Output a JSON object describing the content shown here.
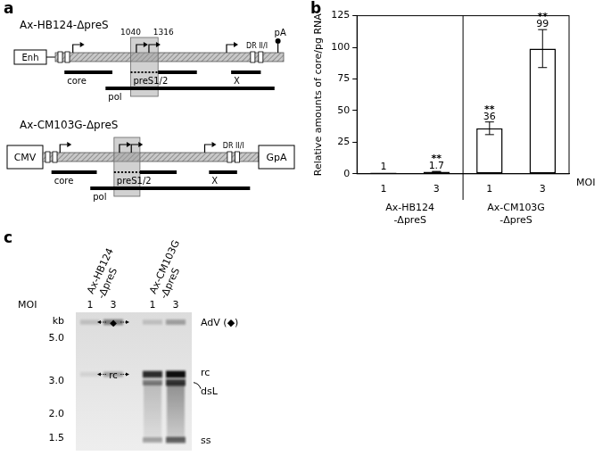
{
  "panel_labels": [
    "a",
    "b",
    "c"
  ],
  "diagram": {
    "constructs": [
      {
        "name": "Ax-HB124-ΔpreS",
        "enhancer": "Enh",
        "deletion": [
          1040,
          1316
        ],
        "dr": "DR II/I",
        "polyA": "pA",
        "orfs": [
          "core",
          "preS1/2",
          "pol",
          "X"
        ]
      },
      {
        "name": "Ax-CM103G-ΔpreS",
        "promoter": "CMV",
        "dr": "DR II/I",
        "polyA": "GpA",
        "orfs": [
          "core",
          "preS1/2",
          "pol",
          "X"
        ]
      }
    ]
  },
  "chart_data": {
    "type": "bar",
    "categories": [
      "1",
      "3",
      "1",
      "3"
    ],
    "groups": [
      [
        "Ax-HB124",
        "-ΔpreS"
      ],
      [
        "Ax-HB124",
        "-ΔpreS"
      ],
      [
        "Ax-CM103G",
        "-ΔpreS"
      ],
      [
        "Ax-CM103G",
        "-ΔpreS"
      ]
    ],
    "values": [
      1,
      1.7,
      36,
      99
    ],
    "errors": [
      0,
      0.2,
      5,
      15
    ],
    "significance": [
      null,
      "**",
      "**",
      "**"
    ],
    "color": "#ffffff",
    "data_labels": true,
    "y_label": "Relative amounts of core/pg RNA",
    "x_label": "MOI",
    "ylim": [
      0,
      125
    ],
    "yticks": [
      0,
      25,
      50,
      75,
      100,
      125
    ],
    "grid": false
  },
  "blot": {
    "groups": [
      [
        "Ax-HB124",
        "-ΔpreS"
      ],
      [
        "Ax-HB124",
        "-ΔpreS"
      ],
      [
        "Ax-CM103G",
        "-ΔpreS"
      ],
      [
        "Ax-CM103G",
        "-ΔpreS"
      ]
    ],
    "moi_label": "MOI",
    "moi": [
      "1",
      "3",
      "1",
      "3"
    ],
    "kb_label": "kb",
    "kb_ticks": [
      {
        "value": 5,
        "label": "5.0"
      },
      {
        "value": 3,
        "label": "3.0"
      },
      {
        "value": 2,
        "label": "2.0"
      },
      {
        "value": 1.5,
        "label": "1.5"
      }
    ],
    "bands": [
      {
        "name": "AdV",
        "label": "AdV (◆)",
        "size_kb": 6.0,
        "intensity": [
          0.15,
          0.45,
          0.15,
          0.3
        ]
      },
      {
        "name": "rc",
        "label": "rc",
        "size_kb": 3.2,
        "intensity": [
          0.08,
          0.3,
          0.85,
          1
        ]
      },
      {
        "name": "dsL",
        "label": "dsL",
        "size_kb": 2.9,
        "intensity": [
          0,
          0,
          0.45,
          0.8
        ]
      },
      {
        "name": "ss",
        "label": "ss",
        "size_kb": 1.45,
        "intensity": [
          0,
          0,
          0.3,
          0.6
        ]
      }
    ],
    "smear": {
      "from_kb": 2.9,
      "to_kb": 1.45,
      "intensity": [
        0,
        0,
        0.2,
        0.4
      ]
    },
    "lane_marks": [
      {
        "text": "◆",
        "band": "AdV"
      },
      {
        "text": "rc",
        "band": "rc"
      }
    ]
  }
}
